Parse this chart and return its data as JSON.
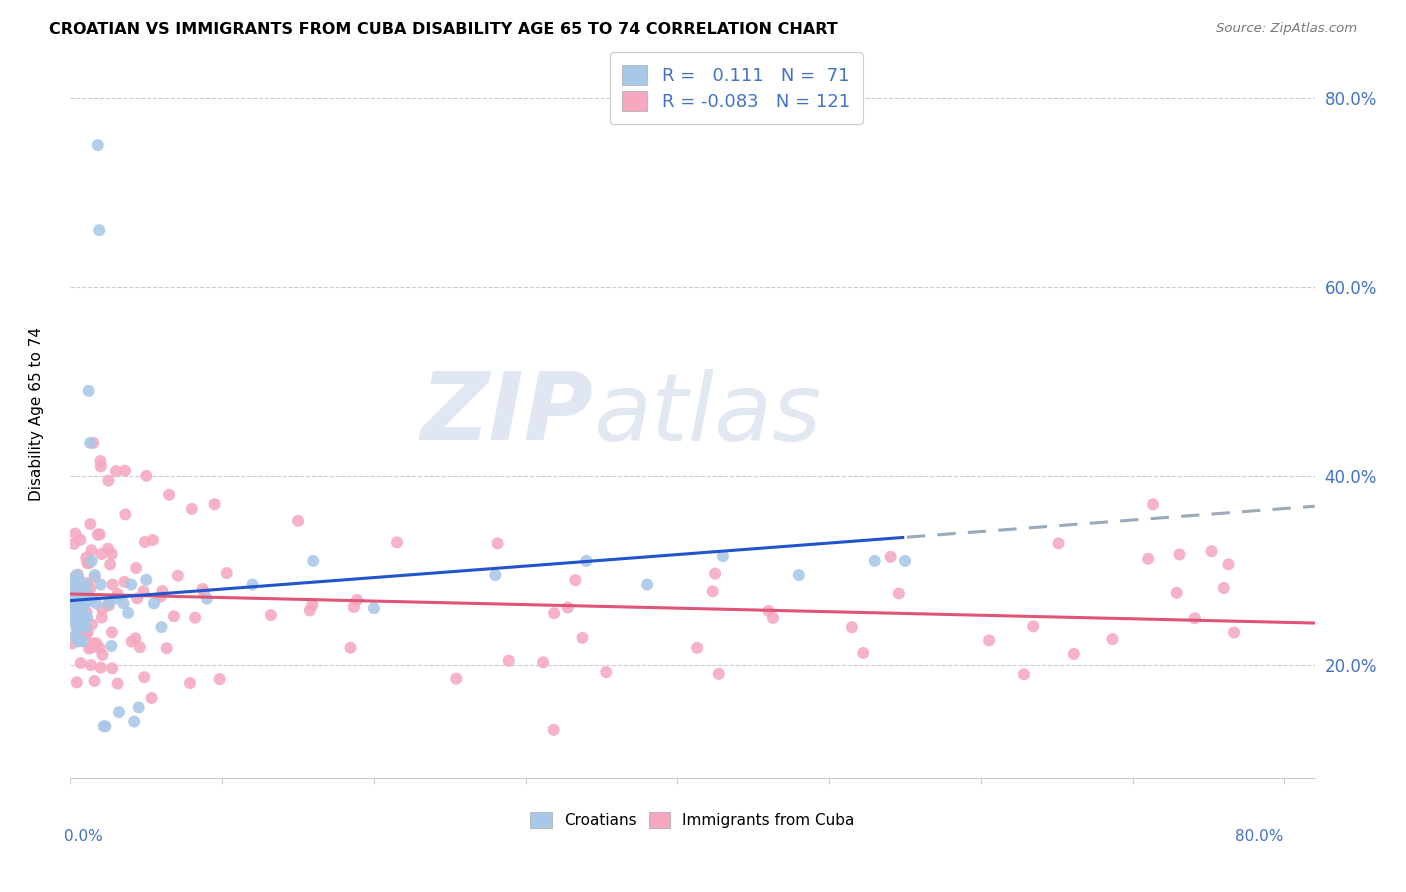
{
  "title": "CROATIAN VS IMMIGRANTS FROM CUBA DISABILITY AGE 65 TO 74 CORRELATION CHART",
  "source": "Source: ZipAtlas.com",
  "ylabel": "Disability Age 65 to 74",
  "xlim": [
    0.0,
    0.82
  ],
  "ylim": [
    0.08,
    0.85
  ],
  "ytick_vals": [
    0.2,
    0.4,
    0.6,
    0.8
  ],
  "ytick_labels": [
    "20.0%",
    "40.0%",
    "60.0%",
    "80.0%"
  ],
  "croatian_R": 0.111,
  "croatian_N": 71,
  "cuba_R": -0.083,
  "cuba_N": 121,
  "croatian_color": "#a8c8e8",
  "cuba_color": "#f5a8be",
  "croatian_line_color": "#2255cc",
  "cuba_line_color": "#e05575",
  "dashed_line_color": "#99aabb",
  "watermark_color": "#c8d4e8",
  "legend_text_color": "#4472c4"
}
